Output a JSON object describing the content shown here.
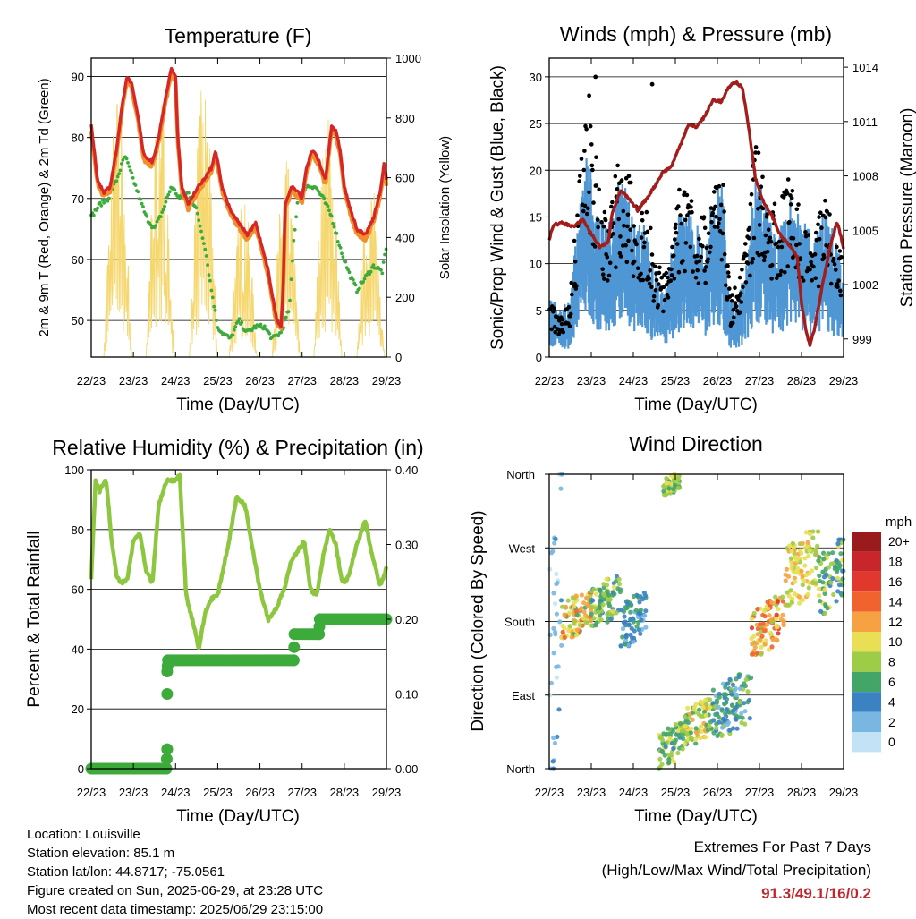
{
  "palette": {
    "temp_red": "#d62728",
    "temp_orange": "#f28e2b",
    "dewpoint_green": "#3cab3c",
    "solar_yellow": "#f5d76e",
    "sonic_wind_blue": "#4f97d4",
    "gust_black": "#000000",
    "pressure_maroon": "#a31d1d",
    "rh_green": "#8dc63f",
    "precip_green": "#3cab3c",
    "extremes_red": "#c0272d"
  },
  "footer": {
    "location": "Location: Louisville",
    "elevation": "Station elevation: 85.1 m",
    "latlon": "Station lat/lon: 44.8717; -75.0561",
    "created": "Figure created on Sun, 2025-06-29, at 23:28 UTC",
    "latest": "Most recent data timestamp: 2025/06/29 23:15:00"
  },
  "extremes": {
    "title": "Extremes For Past 7 Days",
    "subtitle": "(High/Low/Max Wind/Total Precipitation)",
    "values": "91.3/49.1/16/0.2"
  },
  "chart_data": [
    {
      "type": "line",
      "title": "Temperature (F)",
      "xlabel": "Time (Day/UTC)",
      "ylabel": "2m & 9m T (Red, Orange) & 2m Td (Green)",
      "ylabel_right": "Solar Insolation (Yellow)",
      "x_ticks": [
        "22/23",
        "23/23",
        "24/23",
        "25/23",
        "26/23",
        "27/23",
        "28/23",
        "29/23"
      ],
      "xlim": [
        0,
        7
      ],
      "ylim": [
        44,
        93
      ],
      "y_ticks": [
        50,
        60,
        70,
        80,
        90
      ],
      "ylim_right": [
        0,
        1000
      ],
      "y_ticks_right": [
        0,
        200,
        400,
        600,
        800,
        1000
      ],
      "grid": "horizontal",
      "series": [
        {
          "key": "temp",
          "x": [
            0,
            0.15,
            0.3,
            0.45,
            0.6,
            0.75,
            0.85,
            0.95,
            1.1,
            1.25,
            1.45,
            1.6,
            1.75,
            1.9,
            2.0,
            2.05,
            2.15,
            2.3,
            2.45,
            2.65,
            2.85,
            2.95,
            3.1,
            3.3,
            3.5,
            3.7,
            3.9,
            4.05,
            4.2,
            4.4,
            4.5,
            4.55,
            4.6,
            4.75,
            4.9,
            5.0,
            5.1,
            5.25,
            5.4,
            5.55,
            5.7,
            5.8,
            5.9,
            6.0,
            6.15,
            6.3,
            6.5,
            6.7,
            6.85,
            6.95,
            7.0
          ],
          "values": [
            82,
            73,
            71,
            72,
            78,
            86,
            90,
            89,
            84,
            77,
            76,
            80,
            86,
            91.3,
            90,
            80,
            72,
            69,
            71,
            73,
            75,
            78,
            72,
            68,
            66,
            64,
            66,
            62,
            58,
            50,
            49.1,
            55,
            69,
            72,
            71,
            70,
            75,
            78,
            76,
            73,
            82,
            81,
            78,
            72,
            68,
            65,
            64,
            67,
            71,
            76,
            73
          ]
        },
        {
          "key": "dewpoint",
          "x": [
            0,
            0.2,
            0.4,
            0.6,
            0.8,
            0.95,
            1.1,
            1.3,
            1.5,
            1.7,
            1.9,
            2.1,
            2.3,
            2.5,
            2.7,
            2.85,
            3.0,
            3.1,
            3.3,
            3.5,
            3.7,
            3.9,
            4.1,
            4.3,
            4.5,
            4.7,
            4.8,
            4.9,
            5.1,
            5.3,
            5.5,
            5.7,
            5.9,
            6.1,
            6.3,
            6.5,
            6.7,
            6.9,
            7.0
          ],
          "values": [
            67,
            69,
            70,
            73,
            77,
            74,
            71,
            67,
            65,
            68,
            72,
            70,
            71,
            68,
            62,
            55,
            49,
            48,
            47,
            50,
            48,
            49,
            49,
            47,
            48,
            52,
            63,
            70,
            72,
            72,
            70,
            67,
            62,
            58,
            55,
            57,
            59,
            58,
            62
          ]
        }
      ],
      "solar_peaks": [
        {
          "x": 0.63,
          "y": 900
        },
        {
          "x": 1.63,
          "y": 910
        },
        {
          "x": 2.66,
          "y": 950
        },
        {
          "x": 3.6,
          "y": 540
        },
        {
          "x": 4.62,
          "y": 660
        },
        {
          "x": 5.61,
          "y": 820
        },
        {
          "x": 6.63,
          "y": 600
        }
      ]
    },
    {
      "type": "scatter",
      "title": "Winds (mph) & Pressure (mb)",
      "xlabel": "Time (Day/UTC)",
      "ylabel": "Sonic/Prop Wind & Gust (Blue, Black)",
      "ylabel_right": "Station Pressure (Maroon)",
      "x_ticks": [
        "22/23",
        "23/23",
        "24/23",
        "25/23",
        "26/23",
        "27/23",
        "28/23",
        "29/23"
      ],
      "xlim": [
        0,
        7
      ],
      "ylim": [
        0,
        32
      ],
      "y_ticks": [
        0,
        5,
        10,
        15,
        20,
        25,
        30
      ],
      "ylim_right": [
        998,
        1014.5
      ],
      "y_ticks_right": [
        999,
        1002,
        1005,
        1008,
        1011,
        1014
      ],
      "grid": "horizontal",
      "wind_envelope": {
        "x": [
          0,
          0.3,
          0.5,
          0.7,
          0.9,
          1.1,
          1.3,
          1.5,
          1.7,
          1.9,
          2.1,
          2.3,
          2.5,
          2.7,
          2.9,
          3.1,
          3.3,
          3.5,
          3.7,
          3.9,
          4.1,
          4.3,
          4.5,
          4.7,
          4.9,
          5.1,
          5.3,
          5.5,
          5.7,
          5.9,
          6.1,
          6.3,
          6.5,
          6.7,
          6.9,
          7.0
        ],
        "sustained": [
          3,
          2.5,
          3,
          9,
          13,
          10,
          8,
          9,
          12,
          10,
          8,
          8,
          5,
          4,
          6,
          9,
          9,
          8,
          7,
          10,
          11,
          3,
          3,
          6,
          12,
          10,
          8,
          8,
          10,
          9,
          8,
          7,
          9,
          8,
          6,
          5
        ],
        "gust": [
          5,
          4,
          6,
          16,
          24,
          19,
          14,
          16,
          19,
          17,
          14,
          15,
          10,
          8,
          11,
          16,
          15,
          14,
          13,
          17,
          19,
          6,
          7,
          12,
          21,
          17,
          14,
          15,
          17,
          15,
          13,
          12,
          15,
          14,
          11,
          10
        ]
      },
      "pressure": {
        "x": [
          0,
          0.1,
          0.3,
          0.6,
          0.8,
          1.0,
          1.2,
          1.4,
          1.5,
          1.7,
          1.9,
          2.1,
          2.3,
          2.5,
          2.7,
          2.9,
          3.1,
          3.3,
          3.5,
          3.7,
          3.9,
          4.1,
          4.3,
          4.45,
          4.6,
          4.75,
          4.9,
          5.1,
          5.3,
          5.5,
          5.7,
          5.9,
          6.0,
          6.1,
          6.2,
          6.3,
          6.5,
          6.7,
          6.85,
          7.0
        ],
        "values": [
          1004.5,
          1005.3,
          1005.4,
          1005.2,
          1005.6,
          1004.8,
          1004.1,
          1004.3,
          1006,
          1007.2,
          1006.7,
          1006.1,
          1006.7,
          1007.4,
          1008.2,
          1008.5,
          1009.6,
          1010.8,
          1010.7,
          1011.3,
          1012.2,
          1012.1,
          1013,
          1013.2,
          1012.8,
          1010.6,
          1007.9,
          1006.5,
          1005.8,
          1004.7,
          1004.2,
          1003.5,
          1001,
          999.5,
          998.7,
          999.5,
          1002,
          1004.3,
          1005.5,
          1004
        ]
      }
    },
    {
      "type": "line",
      "title": "Relative Humidity (%) & Precipitation (in)",
      "xlabel": "Time (Day/UTC)",
      "ylabel": "Percent & Total Rainfall",
      "x_ticks": [
        "22/23",
        "23/23",
        "24/23",
        "25/23",
        "26/23",
        "27/23",
        "28/23",
        "29/23"
      ],
      "xlim": [
        0,
        7
      ],
      "ylim": [
        0,
        100
      ],
      "y_ticks": [
        0,
        20,
        40,
        60,
        80,
        100
      ],
      "ylim_right": [
        0,
        0.4
      ],
      "y_ticks_right": [
        "0.00",
        "0.10",
        "0.20",
        "0.30",
        "0.40"
      ],
      "grid": "horizontal",
      "rh": {
        "x": [
          0,
          0.1,
          0.2,
          0.35,
          0.5,
          0.6,
          0.7,
          0.85,
          1.0,
          1.15,
          1.3,
          1.45,
          1.6,
          1.75,
          1.85,
          1.95,
          2.1,
          2.25,
          2.45,
          2.55,
          2.7,
          2.85,
          3.0,
          3.1,
          3.25,
          3.45,
          3.65,
          3.85,
          4.0,
          4.2,
          4.4,
          4.6,
          4.75,
          4.9,
          5.05,
          5.2,
          5.35,
          5.5,
          5.65,
          5.8,
          5.95,
          6.1,
          6.3,
          6.5,
          6.65,
          6.85,
          7.0
        ],
        "values": [
          63,
          96,
          93,
          97,
          74,
          65,
          62,
          63,
          76,
          79,
          66,
          62,
          88,
          95,
          97,
          96,
          98,
          58,
          47,
          40,
          52,
          57,
          58,
          65,
          75,
          91,
          88,
          72,
          60,
          50,
          54,
          61,
          70,
          73,
          76,
          60,
          58,
          71,
          80,
          75,
          62,
          64,
          75,
          83,
          72,
          61,
          67
        ]
      },
      "precip": [
        {
          "x": 0,
          "y": 0
        },
        {
          "x": 1.78,
          "y": 0
        },
        {
          "x": 1.8,
          "y": 0.026
        },
        {
          "x": 1.8,
          "y": 0.1
        },
        {
          "x": 1.8,
          "y": 0.13
        },
        {
          "x": 1.82,
          "y": 0.145
        },
        {
          "x": 4.8,
          "y": 0.145
        },
        {
          "x": 4.82,
          "y": 0.18
        },
        {
          "x": 5.4,
          "y": 0.18
        },
        {
          "x": 5.42,
          "y": 0.2
        },
        {
          "x": 7.0,
          "y": 0.2
        }
      ]
    },
    {
      "type": "scatter",
      "title": "Wind Direction",
      "xlabel": "Time (Day/UTC)",
      "ylabel": "Direction (Colored By Speed)",
      "x_ticks": [
        "22/23",
        "23/23",
        "24/23",
        "25/23",
        "26/23",
        "27/23",
        "28/23",
        "29/23"
      ],
      "xlim": [
        0,
        7
      ],
      "ylim": [
        0,
        360
      ],
      "y_tick_labels": [
        "North",
        "East",
        "South",
        "West",
        "North"
      ],
      "y_tick_values": [
        0,
        90,
        180,
        270,
        360
      ],
      "grid": "horizontal",
      "legend": {
        "title": "mph",
        "labels": [
          "20+",
          "18",
          "16",
          "14",
          "12",
          "10",
          "8",
          "6",
          "4",
          "2",
          "0"
        ],
        "colors": [
          "#9a1b1b",
          "#c7262a",
          "#e0382d",
          "#f0632f",
          "#f6a243",
          "#e8df55",
          "#9dcc46",
          "#44a569",
          "#3a82c2",
          "#79b7e2",
          "#c2e3f5"
        ]
      },
      "clusters": [
        {
          "x0": 0,
          "x1": 0.3,
          "d0": 0,
          "d1": 360,
          "spd": [
            0,
            4
          ]
        },
        {
          "x0": 0.3,
          "x1": 1.0,
          "d0": 160,
          "d1": 215,
          "spd": [
            6,
            14
          ]
        },
        {
          "x0": 1.0,
          "x1": 1.7,
          "d0": 175,
          "d1": 235,
          "spd": [
            4,
            10
          ]
        },
        {
          "x0": 1.7,
          "x1": 2.3,
          "d0": 150,
          "d1": 215,
          "spd": [
            2,
            6
          ]
        },
        {
          "x0": 2.6,
          "x1": 3.2,
          "d0": 0,
          "d1": 55,
          "spd": [
            4,
            10
          ]
        },
        {
          "x0": 2.7,
          "x1": 3.1,
          "d0": 335,
          "d1": 360,
          "spd": [
            6,
            10
          ]
        },
        {
          "x0": 3.2,
          "x1": 3.9,
          "d0": 30,
          "d1": 85,
          "spd": [
            6,
            12
          ]
        },
        {
          "x0": 3.9,
          "x1": 4.8,
          "d0": 40,
          "d1": 115,
          "spd": [
            2,
            8
          ]
        },
        {
          "x0": 4.8,
          "x1": 5.6,
          "d0": 140,
          "d1": 210,
          "spd": [
            8,
            16
          ]
        },
        {
          "x0": 5.6,
          "x1": 6.4,
          "d0": 200,
          "d1": 290,
          "spd": [
            8,
            12
          ]
        },
        {
          "x0": 6.4,
          "x1": 7.0,
          "d0": 190,
          "d1": 280,
          "spd": [
            4,
            10
          ]
        }
      ]
    }
  ]
}
